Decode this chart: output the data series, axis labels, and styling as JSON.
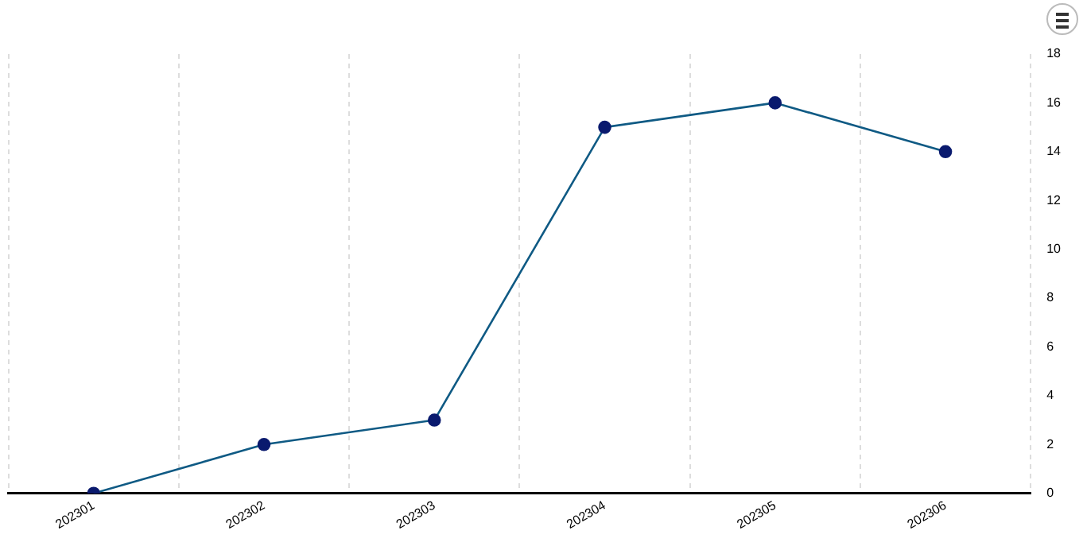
{
  "chart_data": {
    "type": "line",
    "categories": [
      "202301",
      "202302",
      "202303",
      "202304",
      "202305",
      "202306"
    ],
    "series": [
      {
        "color": "#0f5a84",
        "values": [
          0,
          2,
          3,
          15,
          16,
          14
        ]
      }
    ],
    "ylim": [
      0,
      18
    ],
    "yticks": [
      0,
      2,
      4,
      6,
      8,
      10,
      12,
      14,
      16,
      18
    ],
    "grid": "x",
    "legend": false,
    "marker": "circle",
    "line_style": "solid"
  }
}
